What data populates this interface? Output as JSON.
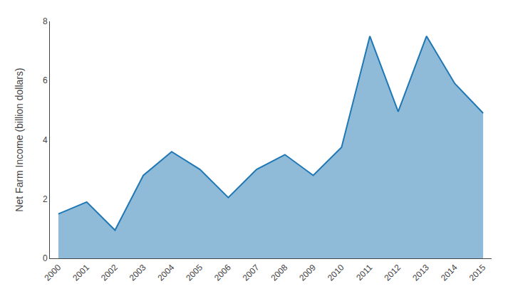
{
  "chart_data": {
    "type": "area",
    "x": [
      2000,
      2001,
      2002,
      2003,
      2004,
      2005,
      2006,
      2007,
      2008,
      2009,
      2010,
      2011,
      2012,
      2013,
      2014,
      2015
    ],
    "values": [
      1.5,
      1.9,
      0.95,
      2.8,
      3.6,
      3.0,
      2.05,
      3.0,
      3.5,
      2.8,
      3.75,
      7.5,
      4.95,
      7.5,
      5.9,
      4.9
    ],
    "ylabel": "Net Farm Income (billion dollars)",
    "xlim": [
      1999.7,
      2015.3
    ],
    "xticks": [
      2000,
      2001,
      2002,
      2003,
      2004,
      2005,
      2006,
      2007,
      2008,
      2009,
      2010,
      2011,
      2012,
      2013,
      2014,
      2015
    ],
    "ylim": [
      0,
      8
    ],
    "yticks": [
      0,
      2,
      4,
      6,
      8
    ],
    "grid": false
  }
}
